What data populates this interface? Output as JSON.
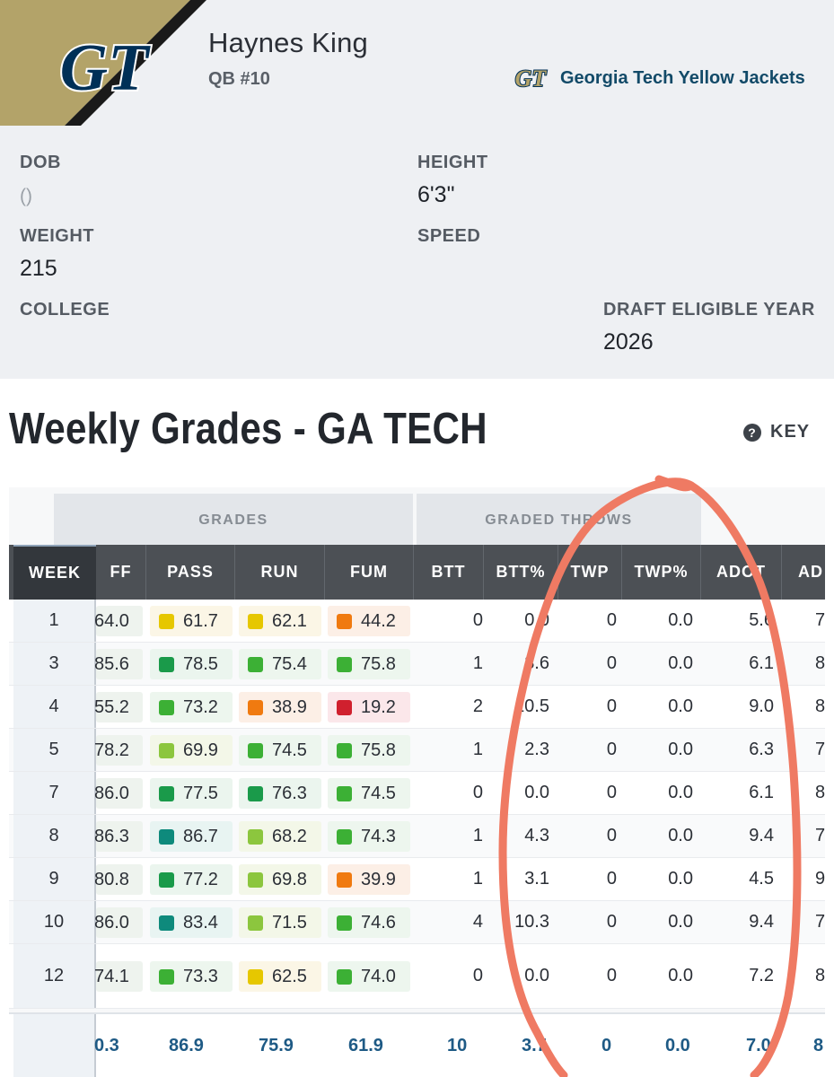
{
  "player": {
    "name": "Haynes King",
    "position": "QB #10"
  },
  "team": {
    "name": "Georgia Tech Yellow Jackets",
    "logo_text": "GT",
    "colors": {
      "gold": "#b3a369",
      "navy": "#003057"
    }
  },
  "info": {
    "dob_label": "DOB",
    "dob_value": "()",
    "height_label": "HEIGHT",
    "height_value": "6'3\"",
    "weight_label": "WEIGHT",
    "weight_value": "215",
    "speed_label": "SPEED",
    "speed_value": "",
    "college_label": "COLLEGE",
    "college_value": "",
    "draft_label": "DRAFT ELIGIBLE YEAR",
    "draft_value": "2026"
  },
  "section_title": "Weekly Grades - GA TECH",
  "key_label": "KEY",
  "key_icon": "help-circle-icon",
  "table": {
    "groups": {
      "grades": "GRADES",
      "graded_throws": "GRADED THROWS"
    },
    "headers": {
      "week": "WEEK",
      "off": "FF",
      "pass": "PASS",
      "run": "RUN",
      "fum": "FUM",
      "btt": "BTT",
      "btt_pct": "BTT%",
      "twp": "TWP",
      "twp_pct": "TWP%",
      "adot": "ADOT",
      "ad": "AD"
    },
    "grade_colors": {
      "elite": "#0e8a7c",
      "high": "#1a9a4a",
      "good": "#3cb035",
      "above": "#8cc63e",
      "avg": "#e6c700",
      "below": "#f07a10",
      "poor": "#d0202e"
    },
    "rows": [
      {
        "week": "1",
        "off": "64.0",
        "pass": "61.7",
        "pass_tier": "avg",
        "run": "62.1",
        "run_tier": "avg",
        "fum": "44.2",
        "fum_tier": "below",
        "btt": "0",
        "btt_pct": "0.0",
        "twp": "0",
        "twp_pct": "0.0",
        "adot": "5.6",
        "ad": "7"
      },
      {
        "week": "3",
        "off": "85.6",
        "pass": "78.5",
        "pass_tier": "high",
        "run": "75.4",
        "run_tier": "good",
        "fum": "75.8",
        "fum_tier": "good",
        "btt": "1",
        "btt_pct": "3.6",
        "twp": "0",
        "twp_pct": "0.0",
        "adot": "6.1",
        "ad": "8"
      },
      {
        "week": "4",
        "off": "55.2",
        "pass": "73.2",
        "pass_tier": "good",
        "run": "38.9",
        "run_tier": "below",
        "fum": "19.2",
        "fum_tier": "poor",
        "btt": "2",
        "btt_pct": "10.5",
        "twp": "0",
        "twp_pct": "0.0",
        "adot": "9.0",
        "ad": "8"
      },
      {
        "week": "5",
        "off": "78.2",
        "pass": "69.9",
        "pass_tier": "above",
        "run": "74.5",
        "run_tier": "good",
        "fum": "75.8",
        "fum_tier": "good",
        "btt": "1",
        "btt_pct": "2.3",
        "twp": "0",
        "twp_pct": "0.0",
        "adot": "6.3",
        "ad": "7"
      },
      {
        "week": "7",
        "off": "86.0",
        "pass": "77.5",
        "pass_tier": "high",
        "run": "76.3",
        "run_tier": "high",
        "fum": "74.5",
        "fum_tier": "good",
        "btt": "0",
        "btt_pct": "0.0",
        "twp": "0",
        "twp_pct": "0.0",
        "adot": "6.1",
        "ad": "8"
      },
      {
        "week": "8",
        "off": "86.3",
        "pass": "86.7",
        "pass_tier": "elite",
        "run": "68.2",
        "run_tier": "above",
        "fum": "74.3",
        "fum_tier": "good",
        "btt": "1",
        "btt_pct": "4.3",
        "twp": "0",
        "twp_pct": "0.0",
        "adot": "9.4",
        "ad": "7"
      },
      {
        "week": "9",
        "off": "80.8",
        "pass": "77.2",
        "pass_tier": "high",
        "run": "69.8",
        "run_tier": "above",
        "fum": "39.9",
        "fum_tier": "below",
        "btt": "1",
        "btt_pct": "3.1",
        "twp": "0",
        "twp_pct": "0.0",
        "adot": "4.5",
        "ad": "9"
      },
      {
        "week": "10",
        "off": "86.0",
        "pass": "83.4",
        "pass_tier": "elite",
        "run": "71.5",
        "run_tier": "above",
        "fum": "74.6",
        "fum_tier": "good",
        "btt": "4",
        "btt_pct": "10.3",
        "twp": "0",
        "twp_pct": "0.0",
        "adot": "9.4",
        "ad": "7"
      },
      {
        "week": "12",
        "off": "74.1",
        "pass": "73.3",
        "pass_tier": "good",
        "run": "62.5",
        "run_tier": "avg",
        "fum": "74.0",
        "fum_tier": "good",
        "btt": "0",
        "btt_pct": "0.0",
        "twp": "0",
        "twp_pct": "0.0",
        "adot": "7.2",
        "ad": "8"
      }
    ],
    "totals": {
      "off": "0.3",
      "pass": "86.9",
      "run": "75.9",
      "fum": "61.9",
      "btt": "10",
      "btt_pct": "3.7",
      "twp": "0",
      "twp_pct": "0.0",
      "adot": "7.0",
      "ad": "8"
    }
  },
  "annotation_color": "#ef7a63"
}
